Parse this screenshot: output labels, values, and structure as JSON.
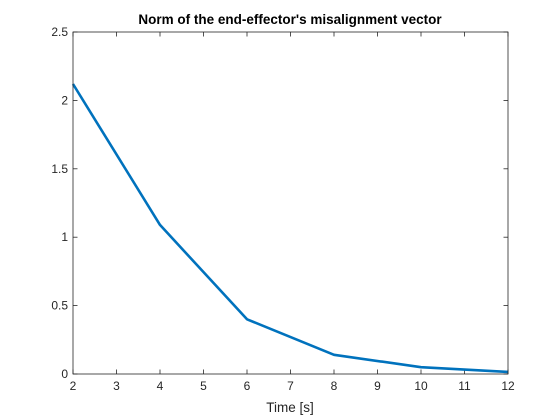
{
  "chart_data": {
    "type": "line",
    "title": "Norm of the end-effector's misalignment vector",
    "xlabel": "Time [s]",
    "ylabel": "",
    "xlim": [
      2,
      12
    ],
    "ylim": [
      0,
      2.5
    ],
    "xticks": [
      2,
      3,
      4,
      5,
      6,
      7,
      8,
      9,
      10,
      11,
      12
    ],
    "yticks": [
      0,
      0.5,
      1,
      1.5,
      2,
      2.5
    ],
    "xtick_labels": [
      "2",
      "3",
      "4",
      "5",
      "6",
      "7",
      "8",
      "9",
      "10",
      "11",
      "12"
    ],
    "ytick_labels": [
      "0",
      "0.5",
      "1",
      "1.5",
      "2",
      "2.5"
    ],
    "grid": false,
    "series": [
      {
        "color": "#0072BD",
        "x": [
          2,
          4,
          6,
          8,
          10,
          12
        ],
        "y": [
          2.12,
          1.09,
          0.4,
          0.14,
          0.05,
          0.015
        ]
      }
    ]
  }
}
